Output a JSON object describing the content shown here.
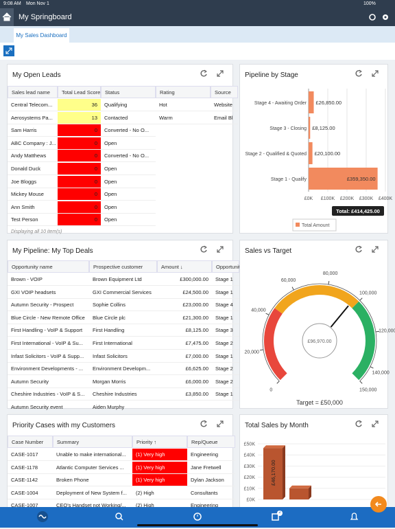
{
  "status_bar": {
    "time": "9:08 AM",
    "date": "Mon Nov 1",
    "battery": "100%"
  },
  "header": {
    "title": "My Springboard"
  },
  "tab": {
    "label": "My Sales Dashboard"
  },
  "leads": {
    "title": "My Open Leads",
    "columns": [
      "Sales lead name",
      "Total Lead Score",
      "Status",
      "Rating",
      "Source"
    ],
    "rows": [
      [
        "Central Telecom...",
        36,
        "Qualifying",
        "Hot",
        "Website"
      ],
      [
        "Aerosystems Pa...",
        13,
        "Contacted",
        "Warm",
        "Email Bl"
      ],
      [
        "Sam Harris",
        0,
        "Converted - No O...",
        null,
        null
      ],
      [
        "ABC Company : J...",
        0,
        "Open",
        null,
        null
      ],
      [
        "Andy Matthews",
        0,
        "Converted - No O...",
        null,
        null
      ],
      [
        "Donald Duck",
        0,
        "Open",
        null,
        null
      ],
      [
        "Joe Bloggs",
        0,
        "Open",
        null,
        null
      ],
      [
        "Mickey Mouse",
        0,
        "Open",
        null,
        null
      ],
      [
        "Ann Smith",
        0,
        "Open",
        null,
        null
      ],
      [
        "Test Person",
        0,
        "Open",
        null,
        null
      ]
    ],
    "footer": "Displaying all 10 item(s)"
  },
  "pipeline_chart": {
    "type": "bar",
    "orientation": "horizontal",
    "title": "Pipeline by Stage",
    "categories": [
      "Stage 4 - Awaiting Order",
      "Stage 3 - Closing",
      "Stage 2 - Qualified & Quoted",
      "Stage 1 - Qualify"
    ],
    "values": [
      26850,
      8125,
      20100,
      359350
    ],
    "value_labels": [
      "£26,850.00",
      "£8,125.00",
      "£20,100.00",
      "£359,350.00"
    ],
    "color": "#f28a5e",
    "xlim": [
      0,
      400000
    ],
    "xticks": [
      {
        "value": 0,
        "label": "£0K"
      },
      {
        "value": 100000,
        "label": "£100K"
      },
      {
        "value": 200000,
        "label": "£200K"
      },
      {
        "value": 300000,
        "label": "£300K"
      },
      {
        "value": 400000,
        "label": "£400K"
      }
    ],
    "total_label": "Total: £414,425.00",
    "legend": "Total Amount"
  },
  "deals": {
    "title": "My Pipeline: My Top Deals",
    "columns": [
      "Opportunity name",
      "Prospective customer",
      "Amount ↓",
      "Opportunity stage"
    ],
    "rows": [
      [
        "Brown - VOIP",
        "Brown Equipment Ltd",
        "£300,000.00",
        "Stage 1"
      ],
      [
        "GXI VOIP headsets",
        "GXI Commercial Services",
        "£24,500.00",
        "Stage 1"
      ],
      [
        "Autumn Security - Prospect",
        "Sophie Collins",
        "£23,000.00",
        "Stage 4"
      ],
      [
        "Blue Circle - New Remote Office",
        "Blue Circle plc",
        "£21,300.00",
        "Stage 1"
      ],
      [
        "First Handling - VoIP & Support",
        "First Handling",
        "£8,125.00",
        "Stage 3"
      ],
      [
        "First International - VoIP & Su...",
        "First International",
        "£7,475.00",
        "Stage 2"
      ],
      [
        "Infast Solicitors - VoIP & Supp...",
        "Infast Solicitors",
        "£7,000.00",
        "Stage 1"
      ],
      [
        "Environment Developments - ...",
        "Environment Developm...",
        "£6,625.00",
        "Stage 2"
      ],
      [
        "Autumn Security",
        "Morgan Morris",
        "£6,000.00",
        "Stage 2"
      ],
      [
        "Cheshire Industries - VoIP & S...",
        "Cheshire Industries",
        "£3,850.00",
        "Stage 1"
      ],
      [
        "Autumn Security event",
        "Aiden Murphy",
        null,
        null
      ]
    ]
  },
  "gauge": {
    "type": "gauge",
    "title": "Sales vs Target",
    "value": 96970,
    "value_label": "£96,970.00",
    "min": 0,
    "max": 150000,
    "ticks": [
      0,
      {
        "value": 20000,
        "label": "20,000"
      },
      {
        "value": 40000,
        "label": "40,000"
      },
      {
        "value": 60000,
        "label": "60,000"
      },
      {
        "value": 80000,
        "label": "80,000"
      },
      {
        "value": 100000,
        "label": "100,000"
      },
      {
        "value": 120000,
        "label": "120,000"
      },
      {
        "value": 140000,
        "label": "140,000"
      },
      {
        "value": 150000,
        "label": "150,000"
      }
    ],
    "bands": [
      {
        "from": 0,
        "to": 45000,
        "color": "#e8473c"
      },
      {
        "from": 45000,
        "to": 100000,
        "color": "#f1a51d"
      },
      {
        "from": 100000,
        "to": 150000,
        "color": "#2bb063"
      }
    ],
    "target_label": "Target = £50,000"
  },
  "cases": {
    "title": "Priority Cases with my Customers",
    "columns": [
      "Case Number",
      "Summary",
      "Priority ↑",
      "Rep/Queue"
    ],
    "rows": [
      [
        "CASE-1017",
        "Unable to make international...",
        "(1) Very high",
        "Engineering"
      ],
      [
        "CASE-1178",
        "Atlantic Computer Services ...",
        "(1) Very high",
        "Jane Fretwell"
      ],
      [
        "CASE-1142",
        "Broken Phone",
        "(1) Very high",
        "Dylan Jackson"
      ],
      [
        "CASE-1004",
        "Deployment of New System f...",
        "(2) High",
        "Consultants"
      ],
      [
        "CASE-1007",
        "CEO's Handset not Working/...",
        "(2) High",
        "Engineering"
      ]
    ]
  },
  "monthly_chart": {
    "type": "bar",
    "title": "Total Sales by Month",
    "categories": [
      null,
      null
    ],
    "values": [
      46170,
      10000
    ],
    "value_labels": [
      "£46,170.00",
      null
    ],
    "color": "#b9552f",
    "ylim": [
      0,
      50000
    ],
    "yticks": [
      {
        "value": 0,
        "label": "£0K"
      },
      {
        "value": 10000,
        "label": "£10K"
      },
      {
        "value": 20000,
        "label": "£20K"
      },
      {
        "value": 30000,
        "label": "£30K"
      },
      {
        "value": 40000,
        "label": "£40K"
      },
      {
        "value": 50000,
        "label": "£50K"
      }
    ]
  },
  "nav": {
    "badge": "2"
  }
}
